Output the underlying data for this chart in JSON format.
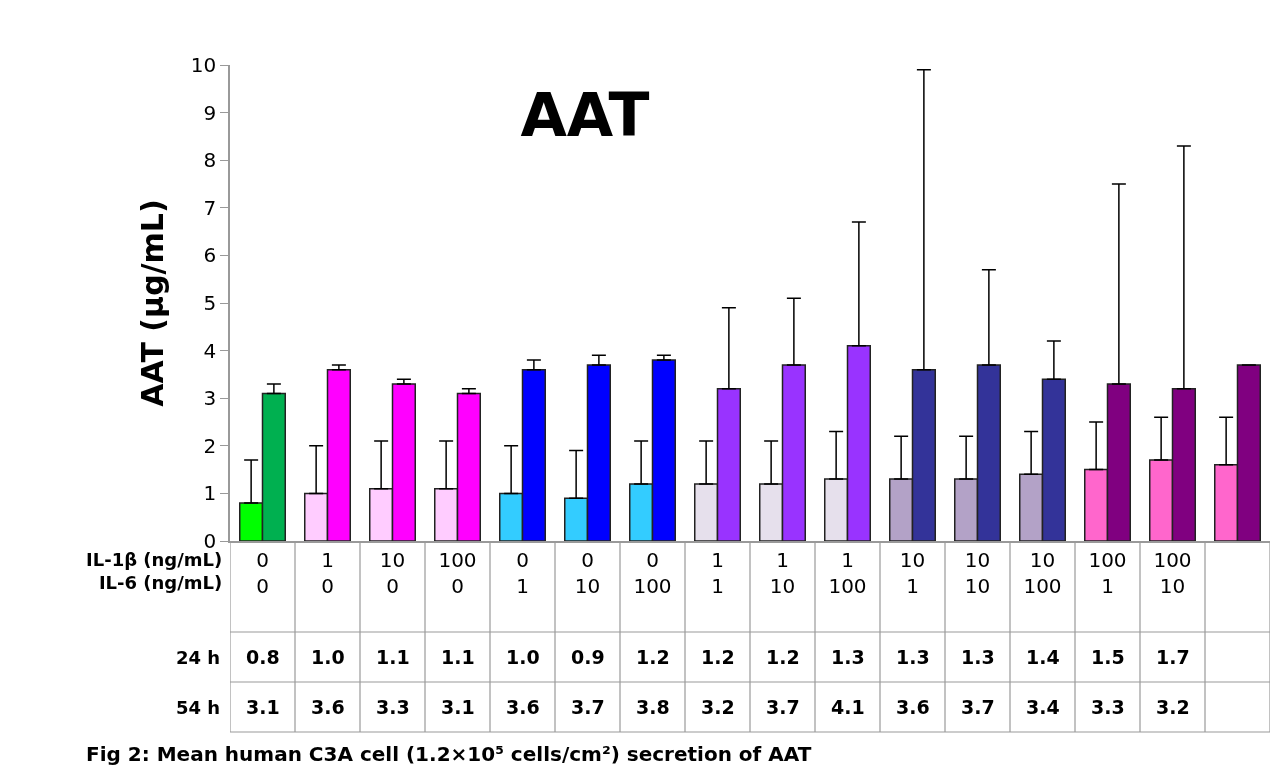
{
  "chart_data": {
    "type": "bar",
    "title": "AAT",
    "ylabel": "AAT (µg/mL)",
    "xlabel": "IL-1β (ng/mL)\nIL-6 (ng/mL)",
    "categories": [
      "0\n0",
      "1\n0",
      "10\n0",
      "100\n0",
      "0\n1",
      "0\n10",
      "0\n100",
      "1\n1",
      "1\n10",
      "1\n100",
      "10\n1",
      "10\n10",
      "10\n100",
      "100\n1",
      "100\n10",
      null
    ],
    "series": [
      {
        "colors": [
          "#00ff00",
          "#ffccff",
          "#ffccff",
          "#ffccff",
          "#33ccff",
          "#33ccff",
          "#33ccff",
          "#e6e0ec",
          "#e6e0ec",
          "#e6e0ec",
          "#b3a2c7",
          "#b3a2c7",
          "#b3a2c7",
          "#ff66cc",
          "#ff66cc",
          "#ff66cc"
        ],
        "values": [
          0.8,
          1.0,
          1.1,
          1.1,
          1.0,
          0.9,
          1.2,
          1.2,
          1.2,
          1.3,
          1.3,
          1.3,
          1.4,
          1.5,
          1.7,
          1.6
        ],
        "value_labels": [
          "0.8",
          "1.0",
          "1.1",
          "1.1",
          "1.0",
          "0.9",
          "1.2",
          "1.2",
          "1.2",
          "1.3",
          "1.3",
          "1.3",
          "1.4",
          "1.5",
          "1.7",
          null
        ],
        "errors": [
          [
            0.8,
            1.7
          ],
          [
            1.0,
            2.0
          ],
          [
            1.1,
            2.1
          ],
          [
            1.1,
            2.1
          ],
          [
            1.0,
            2.0
          ],
          [
            0.9,
            1.9
          ],
          [
            1.2,
            2.1
          ],
          [
            1.2,
            2.1
          ],
          [
            1.2,
            2.1
          ],
          [
            1.3,
            2.3
          ],
          [
            1.3,
            2.2
          ],
          [
            1.3,
            2.2
          ],
          [
            1.4,
            2.3
          ],
          [
            1.5,
            2.5
          ],
          [
            1.7,
            2.6
          ],
          [
            1.6,
            2.6
          ]
        ]
      },
      {
        "colors": [
          "#00b050",
          "#ff00ff",
          "#ff00ff",
          "#ff00ff",
          "#0000ff",
          "#0000ff",
          "#0000ff",
          "#9933ff",
          "#9933ff",
          "#9933ff",
          "#333399",
          "#333399",
          "#333399",
          "#800080",
          "#800080",
          "#800080"
        ],
        "values": [
          3.1,
          3.6,
          3.3,
          3.1,
          3.6,
          3.7,
          3.8,
          3.2,
          3.7,
          4.1,
          3.6,
          3.7,
          3.4,
          3.3,
          3.2,
          3.7
        ],
        "value_labels": [
          "3.1",
          "3.6",
          "3.3",
          "3.1",
          "3.6",
          "3.7",
          "3.8",
          "3.2",
          "3.7",
          "4.1",
          "3.6",
          "3.7",
          "3.4",
          "3.3",
          "3.2",
          null
        ],
        "errors": [
          [
            3.1,
            3.3
          ],
          [
            3.6,
            3.7
          ],
          [
            3.3,
            3.4
          ],
          [
            3.1,
            3.2
          ],
          [
            3.6,
            3.8
          ],
          [
            3.7,
            3.9
          ],
          [
            3.8,
            3.9
          ],
          [
            3.2,
            4.9
          ],
          [
            3.7,
            5.1
          ],
          [
            4.1,
            6.7
          ],
          [
            3.6,
            9.9
          ],
          [
            3.7,
            5.7
          ],
          [
            3.4,
            4.2
          ],
          [
            3.3,
            7.5
          ],
          [
            3.2,
            8.3
          ],
          null
        ]
      }
    ],
    "ylim": [
      0,
      10
    ],
    "yticks": [
      0,
      1,
      2,
      3,
      4,
      5,
      6,
      7,
      8,
      9,
      10
    ],
    "annotations": [
      "24 h",
      "54 h",
      "Fig 2: Mean human C3A cell (1.2×10⁵ cells/cm²) secretion of AAT"
    ]
  }
}
